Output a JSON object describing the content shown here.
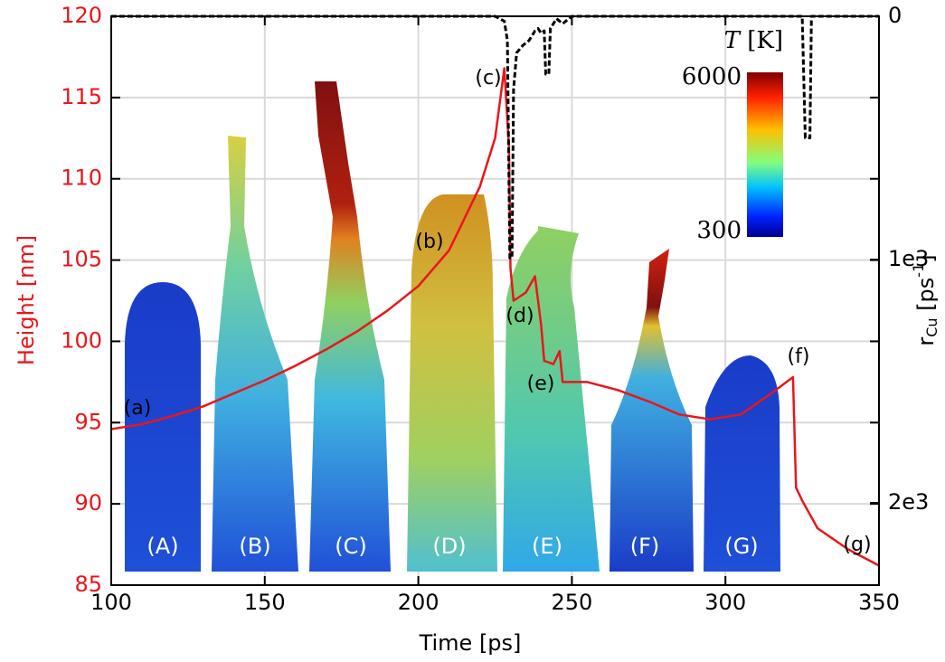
{
  "chart_data": {
    "type": "line",
    "xlabel": "Time [ps]",
    "ylabel": "Height [nm]",
    "y2label": {
      "base": "r",
      "sub": "Cu",
      "text": " [ps",
      "sup": "-1",
      "end": "]"
    },
    "xlim": [
      100,
      350
    ],
    "xticks": [
      100,
      150,
      200,
      250,
      300,
      350
    ],
    "ylim": [
      85,
      120
    ],
    "yticks": [
      85,
      90,
      95,
      100,
      105,
      110,
      115,
      120
    ],
    "y2lim": [
      2338,
      0
    ],
    "y2ticks": [
      0,
      {
        "value": 1000,
        "label": "1e3"
      },
      {
        "value": 2000,
        "label": "2e3"
      }
    ],
    "grid": true,
    "series": [
      {
        "color": "#e8161b",
        "axis": "y",
        "x": [
          100,
          110,
          120,
          130,
          140,
          150,
          160,
          170,
          180,
          190,
          200,
          210,
          220,
          225,
          228,
          229.5,
          230,
          231,
          235,
          238,
          240,
          241,
          244,
          246,
          247,
          255,
          265,
          275,
          285,
          295,
          305,
          315,
          322,
          323,
          325,
          330,
          340,
          350
        ],
        "values": [
          94.6,
          94.9,
          95.4,
          96.0,
          96.8,
          97.6,
          98.5,
          99.5,
          100.6,
          101.9,
          103.4,
          105.6,
          109.5,
          112.5,
          116.8,
          112,
          104.5,
          102.5,
          103,
          104,
          101,
          98.8,
          98.6,
          99.4,
          97.5,
          97.5,
          97.0,
          96.3,
          95.5,
          95.2,
          95.5,
          96.8,
          97.8,
          91,
          90.2,
          88.5,
          87.2,
          86.2
        ]
      },
      {
        "color": "#000000",
        "axis": "y2",
        "dashed": true,
        "x": [
          100,
          225,
          228,
          229,
          229.8,
          230.5,
          231,
          232,
          234,
          236,
          237,
          238,
          239,
          240,
          241,
          241.5,
          242.5,
          243,
          245,
          247,
          250,
          325,
          326,
          327.5,
          328,
          350
        ],
        "values": [
          0,
          0,
          20,
          100,
          993,
          993,
          300,
          150,
          120,
          100,
          80,
          60,
          50,
          70,
          60,
          238,
          238,
          50,
          10,
          30,
          0,
          0,
          500,
          500,
          0,
          0
        ]
      }
    ],
    "colorbar": {
      "label_italic": "T",
      "label": " [K]",
      "clim": [
        300,
        6000
      ],
      "ticks": [
        6000,
        300
      ]
    },
    "annotations": [
      "(a)",
      "(b)",
      "(c)",
      "(d)",
      "(e)",
      "(f)",
      "(g)"
    ],
    "snapshots": [
      "(A)",
      "(B)",
      "(C)",
      "(D)",
      "(E)",
      "(F)",
      "(G)"
    ]
  }
}
